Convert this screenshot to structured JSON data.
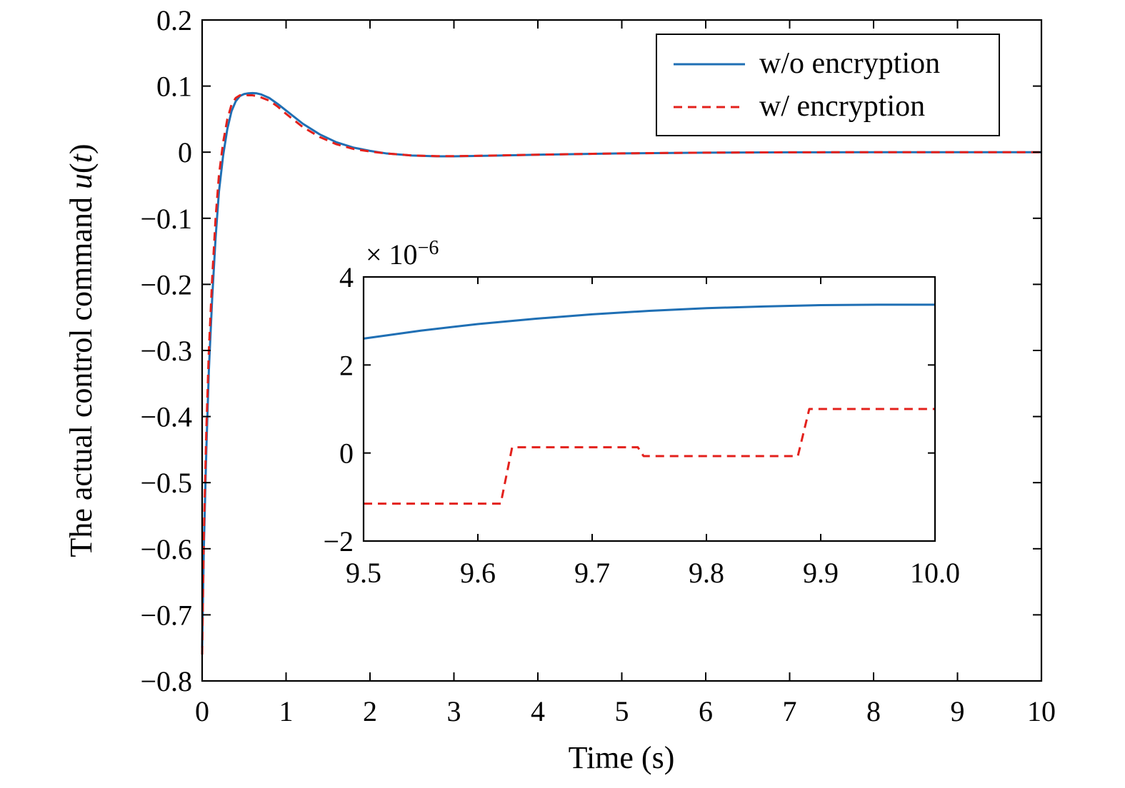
{
  "chart_data": [
    {
      "id": "main",
      "type": "line",
      "xlabel": "Time (s)",
      "ylabel_prefix": "The actual control command ",
      "ylabel_symbol": "u",
      "ylabel_paren_open": "(",
      "ylabel_var": "t",
      "ylabel_paren_close": ")",
      "xlim": [
        0,
        10
      ],
      "ylim": [
        -0.8,
        0.2
      ],
      "xticks": [
        0,
        1,
        2,
        3,
        4,
        5,
        6,
        7,
        8,
        9,
        10
      ],
      "xtick_labels": [
        "0",
        "1",
        "2",
        "3",
        "4",
        "5",
        "6",
        "7",
        "8",
        "9",
        "10"
      ],
      "yticks": [
        0.2,
        0.1,
        0,
        -0.1,
        -0.2,
        -0.3,
        -0.4,
        -0.5,
        -0.6,
        -0.7,
        -0.8
      ],
      "ytick_labels": [
        "0.2",
        "0.1",
        "0",
        "−0.1",
        "−0.2",
        "−0.3",
        "−0.4",
        "−0.5",
        "−0.6",
        "−0.7",
        "−0.8"
      ],
      "grid": false,
      "legend_position": "top-right",
      "series": [
        {
          "name": "w/o encryption",
          "color": "#1f6fb4",
          "style": "solid",
          "x": [
            0,
            0.02,
            0.05,
            0.08,
            0.12,
            0.16,
            0.2,
            0.25,
            0.3,
            0.35,
            0.4,
            0.45,
            0.5,
            0.55,
            0.6,
            0.65,
            0.7,
            0.8,
            0.9,
            1.0,
            1.2,
            1.4,
            1.6,
            1.8,
            2.0,
            2.2,
            2.5,
            2.8,
            3.0,
            3.5,
            4.0,
            5.0,
            6.0,
            7.0,
            8.0,
            9.0,
            10.0
          ],
          "y": [
            -0.75,
            -0.6,
            -0.45,
            -0.33,
            -0.22,
            -0.13,
            -0.06,
            -0.005,
            0.035,
            0.062,
            0.077,
            0.085,
            0.088,
            0.089,
            0.0895,
            0.089,
            0.0875,
            0.082,
            0.073,
            0.063,
            0.043,
            0.027,
            0.015,
            0.007,
            0.002,
            -0.002,
            -0.005,
            -0.0062,
            -0.0062,
            -0.0052,
            -0.0038,
            -0.0018,
            -0.0007,
            -0.0002,
            0.0,
            0.0,
            0.0
          ]
        },
        {
          "name": "w/ encryption",
          "color": "#e3211c",
          "style": "dashed",
          "x": [
            0,
            0.02,
            0.05,
            0.08,
            0.12,
            0.16,
            0.2,
            0.25,
            0.3,
            0.35,
            0.4,
            0.45,
            0.5,
            0.55,
            0.6,
            0.65,
            0.7,
            0.8,
            0.9,
            1.0,
            1.2,
            1.4,
            1.6,
            1.8,
            2.0,
            2.2,
            2.5,
            2.8,
            3.0,
            3.5,
            4.0,
            5.0,
            6.0,
            7.0,
            8.0,
            9.0,
            10.0
          ],
          "y": [
            -0.76,
            -0.58,
            -0.42,
            -0.3,
            -0.19,
            -0.1,
            -0.035,
            0.015,
            0.05,
            0.072,
            0.082,
            0.086,
            0.087,
            0.086,
            0.086,
            0.085,
            0.083,
            0.078,
            0.069,
            0.058,
            0.038,
            0.023,
            0.012,
            0.005,
            0.001,
            -0.002,
            -0.005,
            -0.006,
            -0.006,
            -0.005,
            -0.0038,
            -0.0018,
            -0.0007,
            -0.0002,
            0.0,
            0.0,
            0.0
          ]
        }
      ]
    },
    {
      "id": "inset",
      "type": "line",
      "exponent_label": "× 10",
      "exponent_power": "−6",
      "xlim": [
        9.5,
        10.0
      ],
      "ylim": [
        -2,
        4
      ],
      "xticks": [
        9.5,
        9.6,
        9.7,
        9.8,
        9.9,
        10.0
      ],
      "xtick_labels": [
        "9.5",
        "9.6",
        "9.7",
        "9.8",
        "9.9",
        "10.0"
      ],
      "yticks": [
        4,
        2,
        0,
        -2
      ],
      "ytick_labels": [
        "4",
        "2",
        "0",
        "−2"
      ],
      "grid": false,
      "series": [
        {
          "name": "w/o encryption",
          "color": "#1f6fb4",
          "style": "solid",
          "x": [
            9.5,
            9.55,
            9.6,
            9.65,
            9.7,
            9.75,
            9.8,
            9.85,
            9.9,
            9.95,
            10.0
          ],
          "y": [
            2.6,
            2.78,
            2.93,
            3.05,
            3.15,
            3.23,
            3.29,
            3.33,
            3.36,
            3.37,
            3.37
          ]
        },
        {
          "name": "w/ encryption",
          "color": "#e3211c",
          "style": "dashed",
          "x": [
            9.5,
            9.62,
            9.63,
            9.74,
            9.745,
            9.88,
            9.89,
            10.0
          ],
          "y": [
            -1.15,
            -1.15,
            0.13,
            0.13,
            -0.07,
            -0.07,
            1.0,
            1.0
          ]
        }
      ]
    }
  ]
}
